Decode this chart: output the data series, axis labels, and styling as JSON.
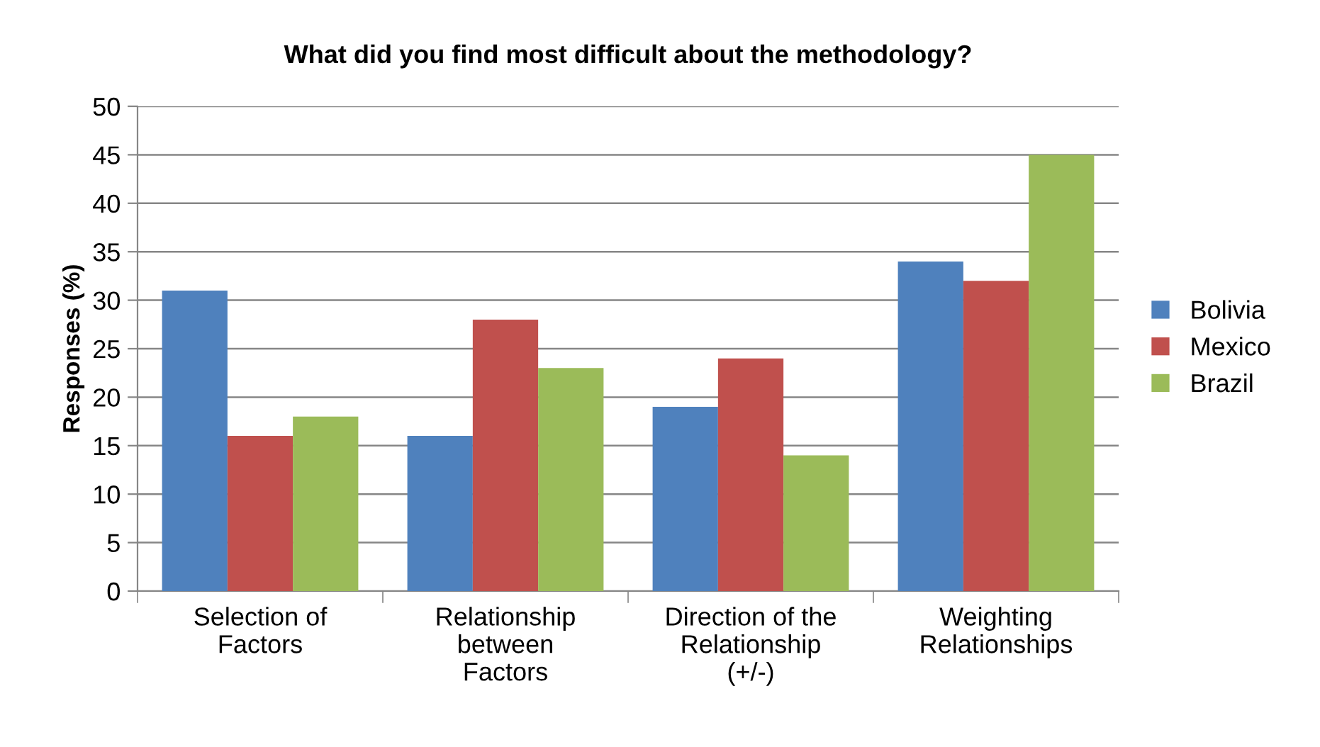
{
  "chart_data": {
    "type": "bar",
    "title": "What did you find most difficult about the methodology?",
    "ylabel": "Responses (%)",
    "categories": [
      "Selection of\nFactors",
      "Relationship\nbetween\nFactors",
      "Direction of the\nRelationship\n(+/-)",
      "Weighting\nRelationships"
    ],
    "series": [
      {
        "name": "Bolivia",
        "color": "#4f81bd",
        "values": [
          31,
          16,
          19,
          34
        ]
      },
      {
        "name": "Mexico",
        "color": "#c0504d",
        "values": [
          16,
          28,
          24,
          32
        ]
      },
      {
        "name": "Brazil",
        "color": "#9bbb59",
        "values": [
          18,
          23,
          14,
          45
        ]
      }
    ],
    "ylim": [
      0,
      50
    ],
    "yticks": [
      0,
      5,
      10,
      15,
      20,
      25,
      30,
      35,
      40,
      45,
      50
    ],
    "grid": "y",
    "legend": "right"
  }
}
